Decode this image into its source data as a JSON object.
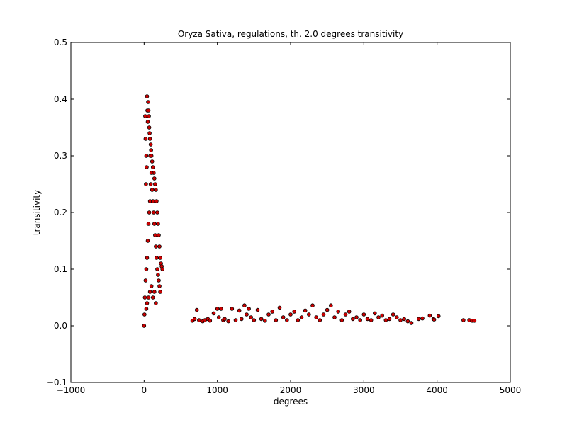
{
  "chart_data": {
    "type": "scatter",
    "title": "Oryza Sativa, regulations, th. 2.0 degrees transitivity",
    "xlabel": "degrees",
    "ylabel": "transitivity",
    "xlim": [
      -1000,
      5000
    ],
    "ylim": [
      -0.1,
      0.5
    ],
    "x_ticks": [
      -1000,
      0,
      1000,
      2000,
      3000,
      4000,
      5000
    ],
    "x_tick_labels": [
      "−1000",
      "0",
      "1000",
      "2000",
      "3000",
      "4000",
      "5000"
    ],
    "y_ticks": [
      -0.1,
      0.0,
      0.1,
      0.2,
      0.3,
      0.4,
      0.5
    ],
    "y_tick_labels": [
      "−0.1",
      "0.0",
      "0.1",
      "0.2",
      "0.3",
      "0.4",
      "0.5"
    ],
    "grid": false,
    "marker_color": "#cc0000",
    "marker_edge_color": "#000000",
    "series": [
      {
        "points": [
          [
            0,
            0.0
          ],
          [
            5,
            0.02
          ],
          [
            10,
            0.05
          ],
          [
            15,
            0.37
          ],
          [
            20,
            0.33
          ],
          [
            25,
            0.25
          ],
          [
            30,
            0.3
          ],
          [
            35,
            0.28
          ],
          [
            40,
            0.405
          ],
          [
            45,
            0.38
          ],
          [
            50,
            0.36
          ],
          [
            55,
            0.395
          ],
          [
            60,
            0.38
          ],
          [
            65,
            0.37
          ],
          [
            70,
            0.35
          ],
          [
            75,
            0.34
          ],
          [
            80,
            0.33
          ],
          [
            85,
            0.3
          ],
          [
            90,
            0.32
          ],
          [
            95,
            0.31
          ],
          [
            100,
            0.3
          ],
          [
            110,
            0.29
          ],
          [
            120,
            0.28
          ],
          [
            130,
            0.27
          ],
          [
            140,
            0.26
          ],
          [
            150,
            0.25
          ],
          [
            160,
            0.24
          ],
          [
            170,
            0.22
          ],
          [
            180,
            0.2
          ],
          [
            190,
            0.18
          ],
          [
            200,
            0.16
          ],
          [
            210,
            0.14
          ],
          [
            220,
            0.12
          ],
          [
            230,
            0.11
          ],
          [
            240,
            0.105
          ],
          [
            250,
            0.1
          ],
          [
            20,
            0.08
          ],
          [
            30,
            0.1
          ],
          [
            40,
            0.12
          ],
          [
            50,
            0.15
          ],
          [
            60,
            0.18
          ],
          [
            70,
            0.2
          ],
          [
            80,
            0.22
          ],
          [
            90,
            0.25
          ],
          [
            100,
            0.27
          ],
          [
            110,
            0.24
          ],
          [
            120,
            0.22
          ],
          [
            130,
            0.2
          ],
          [
            140,
            0.18
          ],
          [
            150,
            0.16
          ],
          [
            160,
            0.14
          ],
          [
            170,
            0.12
          ],
          [
            180,
            0.1
          ],
          [
            190,
            0.09
          ],
          [
            200,
            0.08
          ],
          [
            210,
            0.07
          ],
          [
            220,
            0.06
          ],
          [
            40,
            0.04
          ],
          [
            60,
            0.05
          ],
          [
            80,
            0.06
          ],
          [
            100,
            0.07
          ],
          [
            120,
            0.05
          ],
          [
            140,
            0.06
          ],
          [
            160,
            0.04
          ],
          [
            30,
            0.03
          ],
          [
            660,
            0.009
          ],
          [
            690,
            0.012
          ],
          [
            720,
            0.028
          ],
          [
            750,
            0.01
          ],
          [
            800,
            0.008
          ],
          [
            830,
            0.01
          ],
          [
            870,
            0.012
          ],
          [
            900,
            0.009
          ],
          [
            950,
            0.022
          ],
          [
            1000,
            0.03
          ],
          [
            1020,
            0.015
          ],
          [
            1050,
            0.03
          ],
          [
            1080,
            0.01
          ],
          [
            1100,
            0.012
          ],
          [
            1150,
            0.008
          ],
          [
            1200,
            0.03
          ],
          [
            1250,
            0.01
          ],
          [
            1300,
            0.027
          ],
          [
            1330,
            0.012
          ],
          [
            1370,
            0.036
          ],
          [
            1400,
            0.02
          ],
          [
            1430,
            0.03
          ],
          [
            1460,
            0.015
          ],
          [
            1500,
            0.01
          ],
          [
            1550,
            0.028
          ],
          [
            1600,
            0.012
          ],
          [
            1650,
            0.009
          ],
          [
            1700,
            0.02
          ],
          [
            1750,
            0.025
          ],
          [
            1800,
            0.01
          ],
          [
            1850,
            0.032
          ],
          [
            1900,
            0.015
          ],
          [
            1950,
            0.01
          ],
          [
            2000,
            0.02
          ],
          [
            2050,
            0.025
          ],
          [
            2100,
            0.01
          ],
          [
            2150,
            0.015
          ],
          [
            2200,
            0.027
          ],
          [
            2250,
            0.02
          ],
          [
            2300,
            0.036
          ],
          [
            2350,
            0.015
          ],
          [
            2400,
            0.01
          ],
          [
            2450,
            0.02
          ],
          [
            2500,
            0.028
          ],
          [
            2550,
            0.036
          ],
          [
            2600,
            0.015
          ],
          [
            2650,
            0.025
          ],
          [
            2700,
            0.01
          ],
          [
            2750,
            0.02
          ],
          [
            2800,
            0.025
          ],
          [
            2850,
            0.012
          ],
          [
            2900,
            0.015
          ],
          [
            2950,
            0.01
          ],
          [
            3000,
            0.02
          ],
          [
            3050,
            0.012
          ],
          [
            3100,
            0.01
          ],
          [
            3150,
            0.022
          ],
          [
            3200,
            0.015
          ],
          [
            3250,
            0.018
          ],
          [
            3300,
            0.01
          ],
          [
            3350,
            0.012
          ],
          [
            3400,
            0.02
          ],
          [
            3450,
            0.015
          ],
          [
            3500,
            0.01
          ],
          [
            3550,
            0.012
          ],
          [
            3600,
            0.008
          ],
          [
            3650,
            0.005
          ],
          [
            3750,
            0.012
          ],
          [
            3800,
            0.013
          ],
          [
            3900,
            0.018
          ],
          [
            3950,
            0.012
          ],
          [
            3960,
            0.011
          ],
          [
            4020,
            0.017
          ],
          [
            4360,
            0.01
          ],
          [
            4440,
            0.01
          ],
          [
            4480,
            0.009
          ],
          [
            4510,
            0.009
          ]
        ]
      }
    ]
  }
}
